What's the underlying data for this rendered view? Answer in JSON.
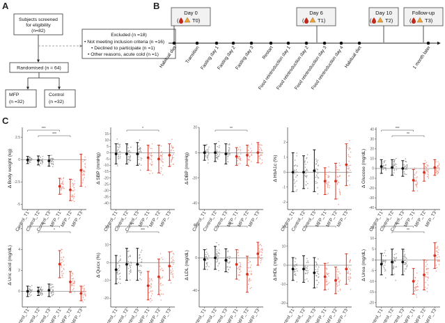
{
  "panel_labels": {
    "a": "A",
    "b": "B",
    "c": "C"
  },
  "flow": {
    "screened": [
      "Subjects screened",
      "for eligibility",
      "(n=82)"
    ],
    "excluded": {
      "title": "Excluded (n =18)",
      "items": [
        "• Not meeting inclusion criteria (n =16)",
        "• Declined to participate (n =1)",
        "• Other reasons, acute cold (n =1)"
      ]
    },
    "randomised": "Randomised (n = 64)",
    "mfp": [
      "MFP",
      "(n =32)"
    ],
    "control": [
      "Control",
      "(n =32)"
    ]
  },
  "timeline": {
    "days": [
      {
        "title": "Day 0",
        "tag": "T0"
      },
      {
        "title": "Day 6",
        "tag": "T1"
      },
      {
        "title": "Day 10",
        "tag": "T2"
      },
      {
        "title": "Follow-up",
        "tag": "T3"
      }
    ],
    "events": [
      "Habitual diet",
      "Transition",
      "Fasting day 1",
      "Fasting day 2",
      "Fasting day 3",
      "Restart",
      "Food reintroduction day 1",
      "Food reintroduction day 2",
      "Food reintroduction day 3",
      "Food reintroduction day 4",
      "Habitual diet",
      "1 month later"
    ]
  },
  "x_categories": [
    "Control_T1",
    "Control_T2",
    "Control_T3",
    "MFP_T1",
    "MFP_T2",
    "MFP_T3"
  ],
  "colors": {
    "control": "#111111",
    "mfp": "#d62f20",
    "control_points": "#9a9a9a",
    "mfp_points": "#ef9a8f"
  },
  "chart_data": [
    {
      "type": "scatter",
      "ylabel": "Δ Body weight (kg)",
      "ylim": [
        -5.6,
        3.6
      ],
      "ticks": [
        2.5,
        0.0,
        -2.5,
        -5.0
      ],
      "means": [
        -0.05,
        -0.1,
        -0.15,
        -3.0,
        -3.4,
        -1.2
      ],
      "errors": [
        0.4,
        0.5,
        0.6,
        0.9,
        1.2,
        1.8
      ],
      "sig": [
        {
          "from": 0,
          "to": 3,
          "label": "***"
        },
        {
          "from": 1,
          "to": 4,
          "label": "***"
        }
      ]
    },
    {
      "type": "scatter",
      "ylabel": "Δ SBP (mmHg)",
      "ylim": [
        -45,
        20
      ],
      "ticks": [
        15,
        10,
        5,
        0,
        -5,
        -10,
        -15,
        -20,
        -25,
        -30,
        -35,
        -40
      ],
      "means": [
        -1,
        -1,
        -1,
        -4,
        -5,
        -2
      ],
      "errors": [
        8,
        8,
        9,
        10,
        11,
        9
      ],
      "sig": [
        {
          "from": 1,
          "to": 4,
          "label": "*"
        }
      ]
    },
    {
      "type": "scatter",
      "ylabel": "Δ DBP (mmHg)",
      "ylim": [
        -45,
        20
      ],
      "ticks": [
        20,
        0,
        -20,
        -40
      ],
      "means": [
        0,
        0,
        -1,
        -3,
        -2,
        0
      ],
      "errors": [
        6,
        7,
        8,
        7,
        8,
        8
      ],
      "sig": [
        {
          "from": 1,
          "to": 4,
          "label": "**"
        }
      ]
    },
    {
      "type": "scatter",
      "ylabel": "Δ HbA1c (%)",
      "ylim": [
        -2.5,
        3.0
      ],
      "ticks": [
        2,
        1,
        0,
        -1,
        -2
      ],
      "means": [
        0.0,
        0.0,
        0.1,
        -0.6,
        -0.6,
        0.5
      ],
      "errors": [
        1.3,
        1.1,
        1.4,
        0.9,
        1.2,
        1.4
      ],
      "sig": []
    },
    {
      "type": "scatter",
      "ylabel": "Δ Glucose (mg/dL)",
      "ylim": [
        -42,
        42
      ],
      "ticks": [
        40,
        30,
        20,
        10,
        0,
        -10,
        -20,
        -30,
        -40
      ],
      "means": [
        2,
        1,
        0,
        -12,
        -4,
        1
      ],
      "errors": [
        7,
        8,
        8,
        11,
        9,
        8
      ],
      "sig": [
        {
          "from": 0,
          "to": 3,
          "label": "***"
        },
        {
          "from": 1,
          "to": 4,
          "label": "**"
        }
      ]
    },
    {
      "type": "scatter",
      "ylabel": "Δ Uric acid (mg/dL)",
      "ylim": [
        -1.5,
        6.5
      ],
      "ticks": [
        6,
        4,
        2,
        0
      ],
      "means": [
        0.0,
        0.0,
        0.1,
        2.6,
        0.9,
        -0.2
      ],
      "errors": [
        0.5,
        0.4,
        0.6,
        1.3,
        1.0,
        0.7
      ],
      "sig": [
        {
          "from": 0,
          "to": 3,
          "label": "***"
        },
        {
          "from": 1,
          "to": 4,
          "label": "*"
        }
      ]
    },
    {
      "type": "scatter",
      "ylabel": "Δ Quicx (%)",
      "ylim": [
        -25,
        22
      ],
      "ticks": [
        20,
        10,
        0,
        -10,
        -20
      ],
      "means": [
        -4,
        -1,
        -1,
        -13,
        -8,
        -2
      ],
      "errors": [
        8,
        9,
        9,
        8,
        10,
        8
      ],
      "sig": [
        {
          "from": 0,
          "to": 3,
          "label": "***"
        },
        {
          "from": 1,
          "to": 4,
          "label": "***"
        }
      ]
    },
    {
      "type": "scatter",
      "ylabel": "Δ LDL (mg/dL)",
      "ylim": [
        -60,
        42
      ],
      "ticks": [
        40,
        0,
        -40
      ],
      "means": [
        -2,
        0,
        -3,
        -8,
        -20,
        5
      ],
      "errors": [
        12,
        14,
        14,
        18,
        22,
        14
      ],
      "sig": [
        {
          "from": 1,
          "to": 4,
          "label": "***"
        }
      ]
    },
    {
      "type": "scatter",
      "ylabel": "Δ HDL (mg/dL)",
      "ylim": [
        -22,
        22
      ],
      "ticks": [
        20,
        10,
        0,
        -10,
        -20
      ],
      "means": [
        -2,
        -2,
        -4,
        -6,
        -8,
        -2
      ],
      "errors": [
        6,
        7,
        8,
        7,
        7,
        8
      ],
      "sig": [
        {
          "from": 1,
          "to": 4,
          "label": "*"
        }
      ]
    },
    {
      "type": "scatter",
      "ylabel": "Δ Urea (mg/dL)",
      "ylim": [
        -22,
        17
      ],
      "ticks": [
        15,
        10,
        5,
        0,
        -5,
        -10,
        -15,
        -20
      ],
      "means": [
        -2,
        -1,
        -1,
        -10,
        -7,
        2
      ],
      "errors": [
        5,
        6,
        6,
        6,
        7,
        6
      ],
      "sig": [
        {
          "from": 0,
          "to": 3,
          "label": "***"
        },
        {
          "from": 1,
          "to": 4,
          "label": "**"
        }
      ]
    }
  ]
}
